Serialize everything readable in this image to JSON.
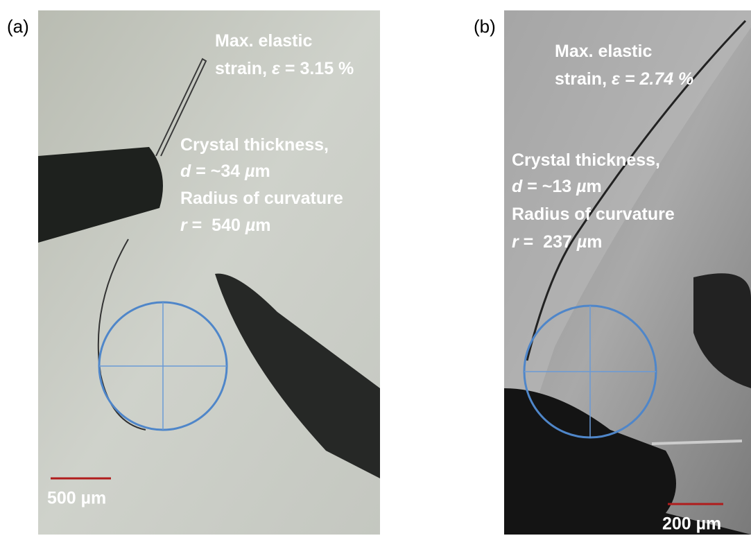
{
  "panels": [
    {
      "label": "(a)",
      "annotations": [
        [
          {
            "text": "Max. elastic",
            "italic": false
          }
        ],
        [
          {
            "text": "strain, ",
            "italic": false
          },
          {
            "text": "ε",
            "italic": true
          },
          {
            "text": " = 3.15 %",
            "italic": false
          }
        ],
        [
          {
            "text": "Crystal thickness,",
            "italic": false
          }
        ],
        [
          {
            "text": "d",
            "italic": true
          },
          {
            "text": " = ~34 ",
            "italic": false
          },
          {
            "text": "µ",
            "italic": true
          },
          {
            "text": "m",
            "italic": false
          }
        ],
        [
          {
            "text": "Radius of curvature",
            "italic": false
          }
        ],
        [
          {
            "text": "r",
            "italic": true
          },
          {
            "text": " =  540 ",
            "italic": false
          },
          {
            "text": "µ",
            "italic": true
          },
          {
            "text": "m",
            "italic": false
          }
        ]
      ],
      "scale_bar": "500 µm"
    },
    {
      "label": "(b)",
      "annotations": [
        [
          {
            "text": "Max. elastic",
            "italic": false
          }
        ],
        [
          {
            "text": "strain, ",
            "italic": false
          },
          {
            "text": "ε",
            "italic": true
          },
          {
            "text": " = 2.74 %",
            "italic": true
          }
        ],
        [
          {
            "text": "Crystal thickness,",
            "italic": false
          }
        ],
        [
          {
            "text": "d",
            "italic": true
          },
          {
            "text": " = ~13 ",
            "italic": false
          },
          {
            "text": "µ",
            "italic": true
          },
          {
            "text": "m",
            "italic": false
          }
        ],
        [
          {
            "text": "Radius of curvature",
            "italic": false
          }
        ],
        [
          {
            "text": "r",
            "italic": true
          },
          {
            "text": " =  237 ",
            "italic": false
          },
          {
            "text": "µ",
            "italic": true
          },
          {
            "text": "m",
            "italic": false
          }
        ]
      ],
      "scale_bar": "200 µm"
    }
  ]
}
